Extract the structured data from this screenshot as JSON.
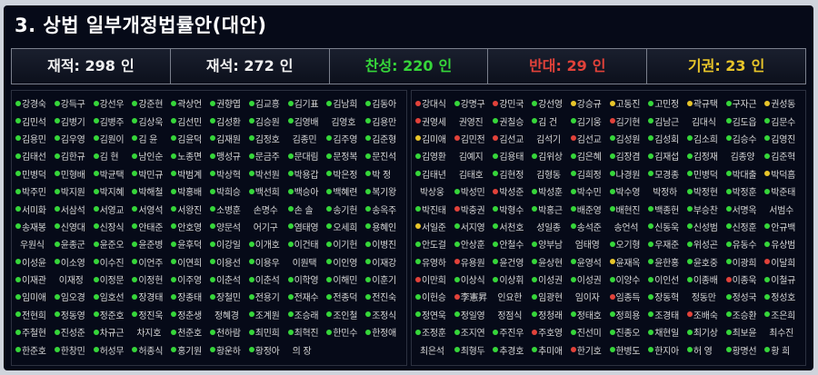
{
  "title": "3. 상법 일부개정법률안(대안)",
  "stats": {
    "total": {
      "label": "재적:",
      "value": "298",
      "unit": "인"
    },
    "present": {
      "label": "재석:",
      "value": "272",
      "unit": "인"
    },
    "yes": {
      "label": "찬성:",
      "value": "220",
      "unit": "인"
    },
    "no": {
      "label": "반대:",
      "value": "29",
      "unit": "인"
    },
    "abstain": {
      "label": "기권:",
      "value": "23",
      "unit": "인"
    }
  },
  "colors": {
    "yes": "#36d63a",
    "no": "#e2423a",
    "abstain": "#e8c52a"
  },
  "left_members": [
    [
      "강경숙",
      "y"
    ],
    [
      "강득구",
      "y"
    ],
    [
      "강선우",
      "y"
    ],
    [
      "강준현",
      "y"
    ],
    [
      "곽상언",
      "y"
    ],
    [
      "권향엽",
      "y"
    ],
    [
      "김교흥",
      "y"
    ],
    [
      "김기표",
      "y"
    ],
    [
      "김남희",
      "y"
    ],
    [
      "김동아",
      "y"
    ],
    [
      "김민석",
      "y"
    ],
    [
      "김병기",
      "y"
    ],
    [
      "김병주",
      "y"
    ],
    [
      "김상욱",
      "y"
    ],
    [
      "김선민",
      "y"
    ],
    [
      "김성환",
      "y"
    ],
    [
      "김승원",
      "y"
    ],
    [
      "김영배",
      "y"
    ],
    [
      "김영호",
      "-"
    ],
    [
      "김용만",
      "y"
    ],
    [
      "김용민",
      "y"
    ],
    [
      "김우영",
      "y"
    ],
    [
      "김원이",
      "y"
    ],
    [
      "김 윤",
      "y"
    ],
    [
      "김윤덕",
      "y"
    ],
    [
      "김재원",
      "y"
    ],
    [
      "김정호",
      "y"
    ],
    [
      "김종민",
      "-"
    ],
    [
      "김주영",
      "y"
    ],
    [
      "김준형",
      "y"
    ],
    [
      "김태선",
      "y"
    ],
    [
      "김한규",
      "y"
    ],
    [
      "김 현",
      "y"
    ],
    [
      "남인순",
      "y"
    ],
    [
      "노종면",
      "y"
    ],
    [
      "맹성규",
      "y"
    ],
    [
      "문금주",
      "y"
    ],
    [
      "문대림",
      "y"
    ],
    [
      "문정복",
      "y"
    ],
    [
      "문진석",
      "y"
    ],
    [
      "민병덕",
      "y"
    ],
    [
      "민형배",
      "y"
    ],
    [
      "박균택",
      "y"
    ],
    [
      "박민규",
      "y"
    ],
    [
      "박범계",
      "y"
    ],
    [
      "박상혁",
      "y"
    ],
    [
      "박선원",
      "y"
    ],
    [
      "박용갑",
      "y"
    ],
    [
      "박은정",
      "y"
    ],
    [
      "박 정",
      "y"
    ],
    [
      "박주민",
      "y"
    ],
    [
      "박지원",
      "y"
    ],
    [
      "박지혜",
      "y"
    ],
    [
      "박해철",
      "y"
    ],
    [
      "박홍배",
      "y"
    ],
    [
      "박희승",
      "y"
    ],
    [
      "백선희",
      "y"
    ],
    [
      "백승아",
      "y"
    ],
    [
      "백혜련",
      "y"
    ],
    [
      "복기왕",
      "y"
    ],
    [
      "서미화",
      "y"
    ],
    [
      "서삼석",
      "y"
    ],
    [
      "서영교",
      "y"
    ],
    [
      "서영석",
      "y"
    ],
    [
      "서왕진",
      "y"
    ],
    [
      "소병훈",
      "y"
    ],
    [
      "손명수",
      "-"
    ],
    [
      "손 솔",
      "y"
    ],
    [
      "송기헌",
      "y"
    ],
    [
      "송옥주",
      "y"
    ],
    [
      "송재봉",
      "y"
    ],
    [
      "신영대",
      "y"
    ],
    [
      "신장식",
      "y"
    ],
    [
      "안태준",
      "y"
    ],
    [
      "안호영",
      "y"
    ],
    [
      "양문석",
      "y"
    ],
    [
      "어기구",
      "-"
    ],
    [
      "염태영",
      "y"
    ],
    [
      "오세희",
      "y"
    ],
    [
      "용혜인",
      "y"
    ],
    [
      "우원식",
      "-"
    ],
    [
      "윤종군",
      "y"
    ],
    [
      "윤준오",
      "y"
    ],
    [
      "윤준병",
      "y"
    ],
    [
      "윤후덕",
      "y"
    ],
    [
      "이강일",
      "y"
    ],
    [
      "이개호",
      "y"
    ],
    [
      "이건태",
      "y"
    ],
    [
      "이기헌",
      "y"
    ],
    [
      "이병진",
      "y"
    ],
    [
      "이성윤",
      "y"
    ],
    [
      "이소영",
      "y"
    ],
    [
      "이수진",
      "y"
    ],
    [
      "이언주",
      "y"
    ],
    [
      "이연희",
      "y"
    ],
    [
      "이용선",
      "y"
    ],
    [
      "이용우",
      "y"
    ],
    [
      "이원택",
      "-"
    ],
    [
      "이인영",
      "y"
    ],
    [
      "이재강",
      "y"
    ],
    [
      "이재관",
      "y"
    ],
    [
      "이재정",
      "-"
    ],
    [
      "이정문",
      "y"
    ],
    [
      "이정헌",
      "y"
    ],
    [
      "이주영",
      "y"
    ],
    [
      "이춘석",
      "y"
    ],
    [
      "이춘석",
      "y"
    ],
    [
      "이학영",
      "y"
    ],
    [
      "이해민",
      "y"
    ],
    [
      "이훈기",
      "y"
    ],
    [
      "임미애",
      "y"
    ],
    [
      "임오경",
      "y"
    ],
    [
      "임호선",
      "y"
    ],
    [
      "장경태",
      "y"
    ],
    [
      "장종태",
      "y"
    ],
    [
      "장철민",
      "y"
    ],
    [
      "전용기",
      "y"
    ],
    [
      "전재수",
      "y"
    ],
    [
      "전종덕",
      "y"
    ],
    [
      "전진숙",
      "y"
    ],
    [
      "전현희",
      "y"
    ],
    [
      "정동영",
      "y"
    ],
    [
      "정준호",
      "y"
    ],
    [
      "정진욱",
      "y"
    ],
    [
      "정춘생",
      "y"
    ],
    [
      "정혜경",
      "-"
    ],
    [
      "조계원",
      "y"
    ],
    [
      "조승래",
      "y"
    ],
    [
      "조인철",
      "y"
    ],
    [
      "조정식",
      "y"
    ],
    [
      "주철현",
      "y"
    ],
    [
      "진성준",
      "y"
    ],
    [
      "차규근",
      "y"
    ],
    [
      "차지호",
      "-"
    ],
    [
      "천준호",
      "y"
    ],
    [
      "천하람",
      "y"
    ],
    [
      "최민희",
      "y"
    ],
    [
      "최혁진",
      "y"
    ],
    [
      "한민수",
      "y"
    ],
    [
      "한정애",
      "y"
    ],
    [
      "한준호",
      "y"
    ],
    [
      "한창민",
      "y"
    ],
    [
      "허성무",
      "y"
    ],
    [
      "허종식",
      "y"
    ],
    [
      "홍기원",
      "y"
    ],
    [
      "황운하",
      "y"
    ],
    [
      "황정아",
      "y"
    ],
    [
      "의 장",
      "-"
    ]
  ],
  "right_members": [
    [
      "강대식",
      "n"
    ],
    [
      "강명구",
      "y"
    ],
    [
      "강민국",
      "n"
    ],
    [
      "강선영",
      "y"
    ],
    [
      "강승규",
      "a"
    ],
    [
      "고동진",
      "a"
    ],
    [
      "고민정",
      "y"
    ],
    [
      "곽규택",
      "a"
    ],
    [
      "구자근",
      "y"
    ],
    [
      "권성동",
      "a"
    ],
    [
      "권영세",
      "n"
    ],
    [
      "권영진",
      "-"
    ],
    [
      "권칠승",
      "y"
    ],
    [
      "김 건",
      "y"
    ],
    [
      "김기웅",
      "y"
    ],
    [
      "김기현",
      "n"
    ],
    [
      "김남근",
      "y"
    ],
    [
      "김대식",
      "-"
    ],
    [
      "김도읍",
      "y"
    ],
    [
      "김문수",
      "y"
    ],
    [
      "김미애",
      "a"
    ],
    [
      "김민전",
      "n"
    ],
    [
      "김선교",
      "n"
    ],
    [
      "김석기",
      "-"
    ],
    [
      "김선교",
      "n"
    ],
    [
      "김성원",
      "y"
    ],
    [
      "김성회",
      "y"
    ],
    [
      "김소희",
      "y"
    ],
    [
      "김승수",
      "y"
    ],
    [
      "김영진",
      "y"
    ],
    [
      "김영환",
      "y"
    ],
    [
      "김예지",
      "-"
    ],
    [
      "김용태",
      "y"
    ],
    [
      "김위상",
      "y"
    ],
    [
      "김은혜",
      "y"
    ],
    [
      "김장겸",
      "y"
    ],
    [
      "김재섭",
      "y"
    ],
    [
      "김정재",
      "y"
    ],
    [
      "김종양",
      "-"
    ],
    [
      "김준혁",
      "y"
    ],
    [
      "김태년",
      "y"
    ],
    [
      "김태호",
      "-"
    ],
    [
      "김현정",
      "y"
    ],
    [
      "김형동",
      "-"
    ],
    [
      "김희정",
      "y"
    ],
    [
      "나경원",
      "y"
    ],
    [
      "모경종",
      "y"
    ],
    [
      "민병덕",
      "y"
    ],
    [
      "박대출",
      "y"
    ],
    [
      "박덕흠",
      "a"
    ],
    [
      "박상웅",
      "-"
    ],
    [
      "박성민",
      "y"
    ],
    [
      "박성준",
      "n"
    ],
    [
      "박성훈",
      "y"
    ],
    [
      "박수민",
      "y"
    ],
    [
      "박수영",
      "y"
    ],
    [
      "박정하",
      "-"
    ],
    [
      "박정현",
      "y"
    ],
    [
      "박정훈",
      "y"
    ],
    [
      "박준태",
      "y"
    ],
    [
      "박진태",
      "y"
    ],
    [
      "박충권",
      "n"
    ],
    [
      "박형수",
      "y"
    ],
    [
      "박홍근",
      "y"
    ],
    [
      "배준영",
      "y"
    ],
    [
      "배현진",
      "y"
    ],
    [
      "백종헌",
      "y"
    ],
    [
      "부승찬",
      "y"
    ],
    [
      "서명옥",
      "y"
    ],
    [
      "서범수",
      "-"
    ],
    [
      "서일준",
      "a"
    ],
    [
      "서지영",
      "y"
    ],
    [
      "서천호",
      "y"
    ],
    [
      "성일종",
      "-"
    ],
    [
      "송석준",
      "y"
    ],
    [
      "송언석",
      "-"
    ],
    [
      "신동욱",
      "y"
    ],
    [
      "신성범",
      "y"
    ],
    [
      "신정훈",
      "y"
    ],
    [
      "안규백",
      "y"
    ],
    [
      "안도걸",
      "y"
    ],
    [
      "안상훈",
      "y"
    ],
    [
      "안철수",
      "y"
    ],
    [
      "양부남",
      "y"
    ],
    [
      "엄태영",
      "-"
    ],
    [
      "오기형",
      "y"
    ],
    [
      "우재준",
      "y"
    ],
    [
      "위성곤",
      "y"
    ],
    [
      "유동수",
      "y"
    ],
    [
      "유상범",
      "y"
    ],
    [
      "유영하",
      "y"
    ],
    [
      "유용원",
      "n"
    ],
    [
      "윤건영",
      "y"
    ],
    [
      "윤상현",
      "y"
    ],
    [
      "윤영석",
      "y"
    ],
    [
      "윤재옥",
      "a"
    ],
    [
      "윤한홍",
      "y"
    ],
    [
      "윤호중",
      "y"
    ],
    [
      "이광희",
      "y"
    ],
    [
      "이달희",
      "n"
    ],
    [
      "이만희",
      "n"
    ],
    [
      "이상식",
      "y"
    ],
    [
      "이상휘",
      "y"
    ],
    [
      "이성권",
      "y"
    ],
    [
      "이성권",
      "y"
    ],
    [
      "이양수",
      "y"
    ],
    [
      "이인선",
      "y"
    ],
    [
      "이종배",
      "y"
    ],
    [
      "이종욱",
      "n"
    ],
    [
      "이철규",
      "y"
    ],
    [
      "이헌승",
      "y"
    ],
    [
      "李憲昇",
      "n"
    ],
    [
      "인요한",
      "-"
    ],
    [
      "임광현",
      "y"
    ],
    [
      "임이자",
      "-"
    ],
    [
      "임종득",
      "n"
    ],
    [
      "장동혁",
      "y"
    ],
    [
      "정동만",
      "-"
    ],
    [
      "정성국",
      "y"
    ],
    [
      "정성호",
      "y"
    ],
    [
      "정연욱",
      "y"
    ],
    [
      "정일영",
      "y"
    ],
    [
      "정점식",
      "-"
    ],
    [
      "정청래",
      "y"
    ],
    [
      "정태호",
      "y"
    ],
    [
      "정희용",
      "y"
    ],
    [
      "조경태",
      "y"
    ],
    [
      "조배숙",
      "n"
    ],
    [
      "조승환",
      "y"
    ],
    [
      "조은희",
      "y"
    ],
    [
      "조정훈",
      "y"
    ],
    [
      "조지연",
      "y"
    ],
    [
      "주진우",
      "y"
    ],
    [
      "주호영",
      "n"
    ],
    [
      "진선미",
      "y"
    ],
    [
      "진종오",
      "y"
    ],
    [
      "채현일",
      "y"
    ],
    [
      "최기상",
      "y"
    ],
    [
      "최보윤",
      "y"
    ],
    [
      "최수진",
      "-"
    ],
    [
      "최은석",
      "-"
    ],
    [
      "최형두",
      "y"
    ],
    [
      "추경호",
      "y"
    ],
    [
      "추미애",
      "y"
    ],
    [
      "한기호",
      "n"
    ],
    [
      "한병도",
      "y"
    ],
    [
      "한지아",
      "y"
    ],
    [
      "허 영",
      "y"
    ],
    [
      "황명선",
      "y"
    ],
    [
      "황 희",
      "y"
    ]
  ]
}
